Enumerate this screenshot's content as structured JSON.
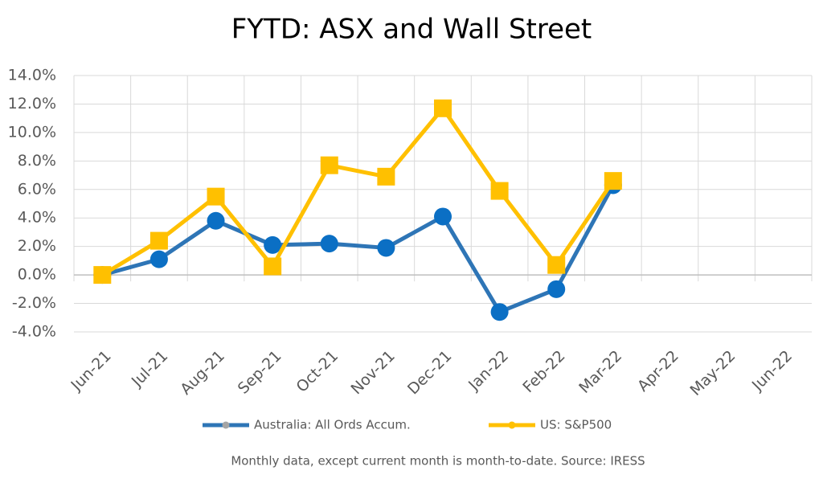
{
  "chart_data": {
    "type": "line",
    "title": "FYTD: ASX and Wall Street",
    "note": "Monthly data, except current month is month-to-date.  Source: IRESS",
    "categories": [
      "Jun-21",
      "Jul-21",
      "Aug-21",
      "Sep-21",
      "Oct-21",
      "Nov-21",
      "Dec-21",
      "Jan-22",
      "Feb-22",
      "Mar-22",
      "Apr-22",
      "May-22",
      "Jun-22"
    ],
    "series": [
      {
        "name": "Australia: All Ords Accum.",
        "color": "#2e75b6",
        "marker": "circle",
        "marker_color": "#0b6fc4",
        "values": [
          0.0,
          1.1,
          3.8,
          2.1,
          2.2,
          1.9,
          4.1,
          -2.6,
          -1.0,
          6.3,
          null,
          null,
          null
        ]
      },
      {
        "name": "US: S&P500",
        "color": "#ffc000",
        "marker": "square",
        "marker_color": "#ffc000",
        "values": [
          0.0,
          2.4,
          5.5,
          0.6,
          7.7,
          6.9,
          11.7,
          5.9,
          0.7,
          6.6,
          null,
          null,
          null
        ]
      }
    ],
    "ylim": [
      -4,
      14
    ],
    "yticks": [
      {
        "value": -4,
        "label": "-4.0%"
      },
      {
        "value": -2,
        "label": "-2.0%"
      },
      {
        "value": 0,
        "label": "0.0%"
      },
      {
        "value": 2,
        "label": "2.0%"
      },
      {
        "value": 4,
        "label": "4.0%"
      },
      {
        "value": 6,
        "label": "6.0%"
      },
      {
        "value": 8,
        "label": "8.0%"
      },
      {
        "value": 10,
        "label": "10.0%"
      },
      {
        "value": 12,
        "label": "12.0%"
      },
      {
        "value": 14,
        "label": "14.0%"
      }
    ],
    "grid": true,
    "legend": "bottom"
  }
}
